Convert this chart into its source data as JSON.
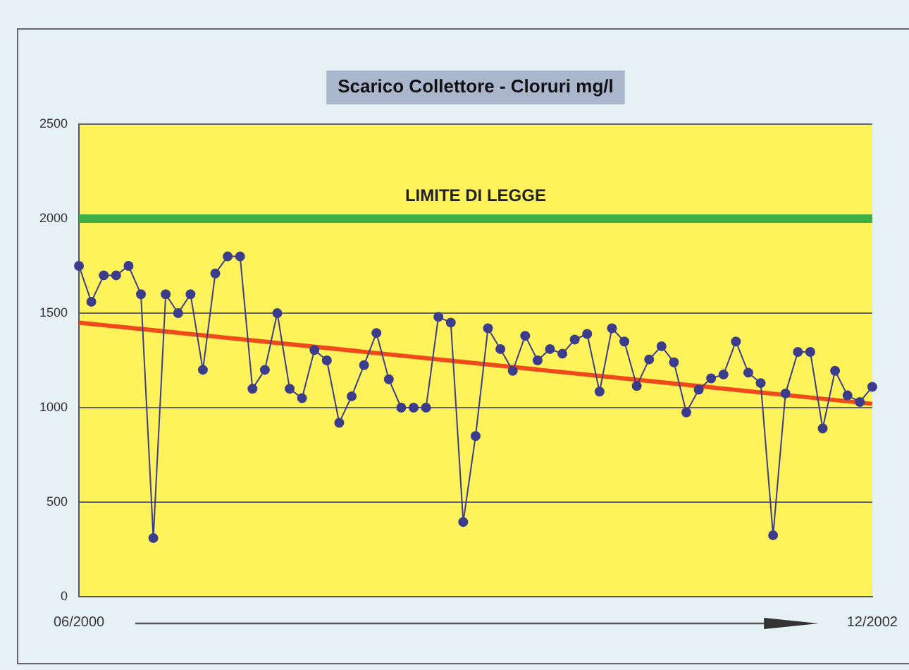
{
  "chart_data": {
    "type": "line",
    "title": "Scarico Collettore - Cloruri mg/l",
    "categories": [
      "06/2000",
      null,
      null,
      null,
      null,
      null,
      null,
      null,
      null,
      null,
      null,
      null,
      null,
      null,
      null,
      null,
      null,
      null,
      null,
      null,
      null,
      null,
      null,
      null,
      null,
      null,
      null,
      null,
      null,
      null,
      null,
      null,
      null,
      null,
      null,
      null,
      null,
      null,
      null,
      null,
      null,
      null,
      null,
      null,
      null,
      null,
      null,
      null,
      null,
      null,
      null,
      null,
      null,
      null,
      null,
      null,
      null,
      null,
      null,
      null,
      null,
      null,
      null,
      null,
      "12/2002"
    ],
    "series": [
      {
        "color": "#3c3c8c",
        "marker": "circle",
        "values": [
          1750,
          1560,
          1700,
          1700,
          1750,
          1600,
          310,
          1600,
          1500,
          1600,
          1200,
          1710,
          1800,
          1800,
          1100,
          1200,
          1500,
          1100,
          1050,
          1305,
          1250,
          920,
          1060,
          1225,
          1395,
          1150,
          1000,
          1000,
          1000,
          1480,
          1450,
          395,
          850,
          1420,
          1310,
          1195,
          1380,
          1250,
          1310,
          1285,
          1360,
          1390,
          1085,
          1420,
          1350,
          1115,
          1255,
          1325,
          1240,
          975,
          1095,
          1155,
          1175,
          1350,
          1185,
          1130,
          325,
          1075,
          1295,
          1295,
          890,
          1195,
          1065,
          1030,
          1110
        ]
      },
      {
        "color": "#f04a1a",
        "marker": "none",
        "values": [
          1450,
          null,
          null,
          null,
          null,
          null,
          null,
          null,
          null,
          null,
          null,
          null,
          null,
          null,
          null,
          null,
          null,
          null,
          null,
          null,
          null,
          null,
          null,
          null,
          null,
          null,
          null,
          null,
          null,
          null,
          null,
          null,
          null,
          null,
          null,
          null,
          null,
          null,
          null,
          null,
          null,
          null,
          null,
          null,
          null,
          null,
          null,
          null,
          null,
          null,
          null,
          null,
          null,
          null,
          null,
          null,
          null,
          null,
          null,
          null,
          null,
          null,
          null,
          null,
          1020
        ]
      }
    ],
    "ylim": [
      0,
      2500
    ],
    "yticks": [
      0,
      500,
      1000,
      1500,
      2000,
      2500
    ],
    "grid": "y",
    "legend": false,
    "ref_lines": [
      {
        "axis": "y",
        "value": 2000,
        "label": "LIMITE DI LEGGE",
        "color": "#3cb043"
      }
    ]
  }
}
